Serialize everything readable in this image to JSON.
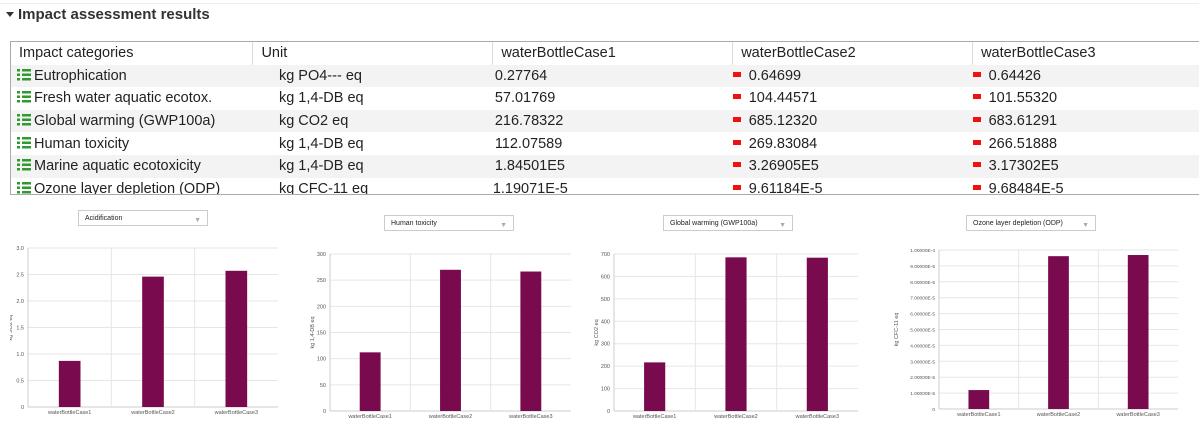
{
  "section": {
    "title": "Impact assessment results"
  },
  "table": {
    "columns": [
      "Impact categories",
      "Unit",
      "waterBottleCase1",
      "waterBottleCase2",
      "waterBottleCase3"
    ],
    "rows": [
      {
        "category": "Eutrophication",
        "unit": "kg PO4--- eq",
        "values": [
          "0.27764",
          "0.64699",
          "0.64426"
        ],
        "case1_bar_color": "#3a6fb5"
      },
      {
        "category": "Fresh water aquatic ecotox.",
        "unit": "kg 1,4-DB eq",
        "values": [
          "57.01769",
          "104.44571",
          "101.55320"
        ],
        "case1_bar_color": "#7a4f9a"
      },
      {
        "category": "Global warming (GWP100a)",
        "unit": "kg CO2 eq",
        "values": [
          "216.78322",
          "685.12320",
          "683.61291"
        ],
        "case1_bar_color": "#2f8fd0"
      },
      {
        "category": "Human toxicity",
        "unit": "kg 1,4-DB eq",
        "values": [
          "112.07589",
          "269.83084",
          "266.51888"
        ],
        "case1_bar_color": "#3a6fb5"
      },
      {
        "category": "Marine aquatic ecotoxicity",
        "unit": "kg 1,4-DB eq",
        "values": [
          "1.84501E5",
          "3.26905E5",
          "3.17302E5"
        ],
        "case1_bar_color": "#7a4f9a"
      },
      {
        "category": "Ozone layer depletion (ODP)",
        "unit": "kg CFC-11 eq",
        "values": [
          "1.19071E-5",
          "9.61184E-5",
          "9.68484E-5"
        ],
        "case1_bar_color": "#2f8fd0"
      }
    ]
  },
  "chart_data": [
    {
      "type": "bar",
      "selected": "Acidification",
      "ylabel": "kg SO2 eq",
      "categories": [
        "waterBottleCase1",
        "waterBottleCase2",
        "waterBottleCase3"
      ],
      "values": [
        0.87,
        2.46,
        2.57
      ],
      "ylim": [
        0,
        3.0
      ],
      "yticks": [
        0,
        0.5,
        1.0,
        1.5,
        2.0,
        2.5,
        3.0
      ],
      "ytick_labels": [
        "0",
        "0.5",
        "1.0",
        "1.5",
        "2.0",
        "2.5",
        "3.0"
      ],
      "color": "#7a0a4e"
    },
    {
      "type": "bar",
      "selected": "Human toxicity",
      "ylabel": "kg 1,4-DB eq",
      "categories": [
        "waterBottleCase1",
        "waterBottleCase2",
        "waterBottleCase3"
      ],
      "values": [
        112.07589,
        269.83084,
        266.51888
      ],
      "ylim": [
        0,
        300
      ],
      "yticks": [
        0,
        50,
        100,
        150,
        200,
        250,
        300
      ],
      "ytick_labels": [
        "0",
        "50",
        "100",
        "150",
        "200",
        "250",
        "300"
      ],
      "color": "#7a0a4e"
    },
    {
      "type": "bar",
      "selected": "Global warming (GWP100a)",
      "ylabel": "kg CO2 eq",
      "categories": [
        "waterBottleCase1",
        "waterBottleCase2",
        "waterBottleCase3"
      ],
      "values": [
        216.78322,
        685.1232,
        683.61291
      ],
      "ylim": [
        0,
        700
      ],
      "yticks": [
        0,
        100,
        200,
        300,
        400,
        500,
        600,
        700
      ],
      "ytick_labels": [
        "0",
        "100",
        "200",
        "300",
        "400",
        "500",
        "600",
        "700"
      ],
      "color": "#7a0a4e"
    },
    {
      "type": "bar",
      "selected": "Ozone layer depletion (ODP)",
      "ylabel": "kg CFC-11 eq",
      "categories": [
        "waterBottleCase1",
        "waterBottleCase2",
        "waterBottleCase3"
      ],
      "values": [
        1.19071e-05,
        9.61184e-05,
        9.68484e-05
      ],
      "ylim": [
        0,
        0.0001
      ],
      "yticks": [
        0,
        1e-05,
        2e-05,
        3e-05,
        4e-05,
        5e-05,
        6e-05,
        7e-05,
        8e-05,
        9e-05,
        0.0001
      ],
      "ytick_labels": [
        "0",
        "1.00000E-5",
        "2.00000E-5",
        "3.00000E-5",
        "4.00000E-5",
        "5.00000E-5",
        "6.00000E-5",
        "7.00000E-5",
        "8.00000E-5",
        "9.00000E-5",
        "1.00000E-4"
      ],
      "color": "#7a0a4e"
    }
  ],
  "colors": {
    "case_bar_red": "#ee1111",
    "icon_green": "#2f9a2f"
  }
}
